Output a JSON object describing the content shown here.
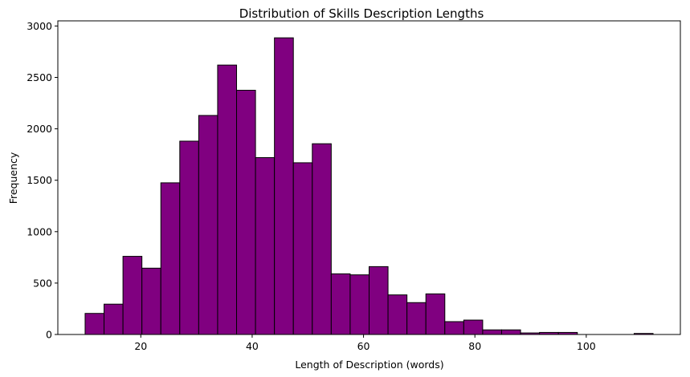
{
  "chart_data": {
    "type": "bar",
    "subtype": "histogram",
    "title": "Distribution of Skills Description Lengths",
    "xlabel": "Length of Description (words)",
    "ylabel": "Frequency",
    "xlim": [
      5.1,
      116.9
    ],
    "ylim": [
      0,
      3050
    ],
    "xticks": [
      20,
      40,
      60,
      80,
      100
    ],
    "yticks": [
      0,
      500,
      1000,
      1500,
      2000,
      2500,
      3000
    ],
    "grid": false,
    "bar_color": "#800080",
    "edge_color": "#000000",
    "bin_start": 10,
    "bin_width": 3.4,
    "values": [
      205,
      295,
      760,
      645,
      1475,
      1880,
      2130,
      2620,
      2375,
      1720,
      2885,
      1670,
      1855,
      590,
      580,
      660,
      385,
      310,
      395,
      125,
      140,
      45,
      45,
      15,
      20,
      20,
      0,
      0,
      0,
      10
    ]
  }
}
